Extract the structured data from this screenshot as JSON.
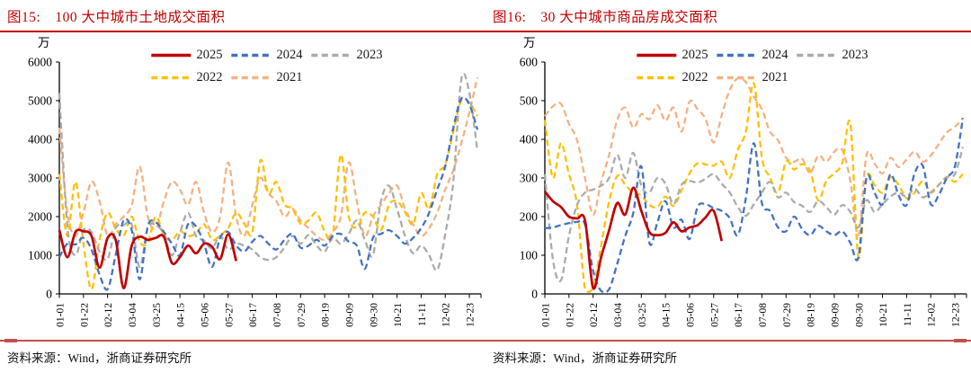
{
  "chart_data": [
    {
      "type": "line",
      "fig_label": "图15:",
      "title": "100 大中城市土地成交面积",
      "unit": "万",
      "ylim": [
        0,
        6000
      ],
      "yticks": [
        0,
        1000,
        2000,
        3000,
        4000,
        5000,
        6000
      ],
      "x_tick_labels": [
        "01-01",
        "01-22",
        "02-12",
        "03-04",
        "03-25",
        "04-15",
        "05-06",
        "05-27",
        "06-17",
        "07-08",
        "07-29",
        "08-19",
        "09-09",
        "09-30",
        "10-21",
        "11-11",
        "12-02",
        "12-23"
      ],
      "x_weeks_per_tick": 3,
      "x_total_weeks": 52,
      "grid": false,
      "legend_position": "top-center",
      "legend_rows": [
        [
          "2025",
          "2024",
          "2023"
        ],
        [
          "2022",
          "2021"
        ]
      ],
      "series": [
        {
          "name": "2025",
          "color": "#c00000",
          "style": "solid",
          "values": [
            1650,
            950,
            1600,
            1620,
            1500,
            680,
            1450,
            1400,
            150,
            1250,
            1480,
            1400,
            1450,
            1480,
            800,
            950,
            1250,
            1050,
            1300,
            1220,
            900,
            1540,
            850
          ]
        },
        {
          "name": "2024",
          "color": "#4472c4",
          "style": "dashed",
          "values": [
            950,
            1300,
            1280,
            1450,
            1150,
            500,
            120,
            1000,
            1900,
            1650,
            380,
            1750,
            1850,
            1600,
            1300,
            1000,
            1800,
            1750,
            1300,
            700,
            1450,
            1600,
            1250,
            1100,
            1350,
            1500,
            1300,
            1150,
            1400,
            1550,
            1200,
            1250,
            1400,
            1250,
            1500,
            1550,
            1350,
            1250,
            650,
            1450,
            1550,
            1650,
            1500,
            1300,
            1450,
            1700,
            2100,
            2700,
            3300,
            4300,
            5050,
            4900,
            4250
          ]
        },
        {
          "name": "2023",
          "color": "#ababab",
          "style": "dashed",
          "values": [
            5200,
            1750,
            1000,
            1650,
            1600,
            1100,
            900,
            1700,
            1780,
            1800,
            700,
            1720,
            1780,
            1550,
            1000,
            1580,
            2100,
            1500,
            1380,
            1180,
            1500,
            1150,
            1300,
            1250,
            1150,
            950,
            880,
            950,
            1200,
            1500,
            1300,
            1520,
            1250,
            1100,
            1450,
            1300,
            1550,
            1900,
            1400,
            1000,
            2400,
            2800,
            2200,
            1500,
            1050,
            1250,
            1000,
            620,
            1550,
            2900,
            5550,
            5200,
            3700
          ]
        },
        {
          "name": "2022",
          "color": "#ffc000",
          "style": "dashed",
          "values": [
            3100,
            1500,
            2900,
            1300,
            120,
            1400,
            2100,
            1700,
            1500,
            2000,
            1350,
            1320,
            2000,
            1520,
            1400,
            1620,
            1500,
            1560,
            1800,
            1400,
            1520,
            1700,
            2100,
            1820,
            1600,
            3450,
            2600,
            2900,
            2320,
            2200,
            1820,
            1900,
            2100,
            1620,
            1500,
            3600,
            2000,
            1720,
            2100,
            2000,
            1650,
            2300,
            2400,
            2120,
            1800,
            2600,
            2200,
            3100,
            3350,
            4200,
            5000,
            4950,
            4600
          ]
        },
        {
          "name": "2021",
          "color": "#f4b183",
          "style": "dashed",
          "values": [
            4300,
            2100,
            1500,
            2100,
            2900,
            2400,
            1500,
            1800,
            2000,
            2300,
            3300,
            2000,
            1700,
            2400,
            2900,
            2700,
            2300,
            2900,
            2100,
            1600,
            2000,
            3400,
            2000,
            1500,
            2300,
            3000,
            2600,
            2400,
            2000,
            2200,
            1900,
            1700,
            1500,
            1400,
            1600,
            2000,
            3400,
            2400,
            1500,
            2000,
            2300,
            2600,
            2800,
            2200,
            1800,
            1500,
            1700,
            2100,
            2700,
            3200,
            3900,
            4700,
            5600
          ]
        }
      ],
      "source": "资料来源：Wind，浙商证券研究所"
    },
    {
      "type": "line",
      "fig_label": "图16:",
      "title": "30 大中城市商品房成交面积",
      "unit": "万",
      "ylim": [
        0,
        600
      ],
      "yticks": [
        0,
        100,
        200,
        300,
        400,
        500,
        600
      ],
      "x_tick_labels": [
        "01-01",
        "01-22",
        "02-12",
        "03-04",
        "03-25",
        "04-15",
        "05-06",
        "05-27",
        "06-17",
        "07-08",
        "07-29",
        "08-19",
        "09-09",
        "09-30",
        "10-21",
        "11-11",
        "12-02",
        "12-23"
      ],
      "x_weeks_per_tick": 3,
      "x_total_weeks": 52,
      "grid": false,
      "legend_position": "top-center",
      "legend_rows": [
        [
          "2025",
          "2024",
          "2023"
        ],
        [
          "2022",
          "2021"
        ]
      ],
      "series": [
        {
          "name": "2025",
          "color": "#c00000",
          "style": "solid",
          "values": [
            265,
            240,
            225,
            200,
            195,
            190,
            15,
            95,
            165,
            235,
            205,
            275,
            215,
            160,
            152,
            158,
            185,
            162,
            172,
            178,
            198,
            215,
            137
          ]
        },
        {
          "name": "2024",
          "color": "#4472c4",
          "style": "dashed",
          "values": [
            170,
            172,
            178,
            183,
            186,
            180,
            60,
            8,
            12,
            78,
            150,
            210,
            330,
            132,
            185,
            240,
            172,
            192,
            142,
            225,
            232,
            222,
            215,
            196,
            152,
            248,
            390,
            235,
            215,
            172,
            162,
            200,
            168,
            152,
            176,
            162,
            152,
            162,
            132,
            95,
            300,
            262,
            232,
            310,
            255,
            230,
            312,
            332,
            232,
            256,
            300,
            330,
            455
          ]
        },
        {
          "name": "2023",
          "color": "#ababab",
          "style": "dashed",
          "values": [
            310,
            90,
            35,
            150,
            230,
            262,
            270,
            280,
            300,
            360,
            300,
            365,
            280,
            262,
            300,
            285,
            232,
            282,
            292,
            288,
            298,
            310,
            285,
            262,
            225,
            202,
            232,
            262,
            290,
            250,
            262,
            238,
            228,
            212,
            240,
            225,
            205,
            230,
            212,
            172,
            242,
            212,
            232,
            252,
            262,
            252,
            272,
            250,
            262,
            282,
            302,
            310,
            380
          ]
        },
        {
          "name": "2022",
          "color": "#ffc000",
          "style": "dashed",
          "values": [
            450,
            300,
            390,
            310,
            230,
            12,
            18,
            125,
            240,
            305,
            282,
            262,
            255,
            230,
            225,
            252,
            228,
            268,
            312,
            338,
            335,
            332,
            342,
            300,
            372,
            420,
            545,
            352,
            302,
            262,
            342,
            322,
            336,
            318,
            242,
            292,
            312,
            340,
            440,
            95,
            300,
            282,
            262,
            302,
            282,
            248,
            262,
            292,
            262,
            282,
            302,
            290,
            310
          ]
        },
        {
          "name": "2021",
          "color": "#f4b183",
          "style": "dashed",
          "values": [
            460,
            485,
            492,
            440,
            398,
            300,
            205,
            290,
            360,
            450,
            482,
            430,
            465,
            452,
            488,
            448,
            482,
            420,
            498,
            478,
            452,
            392,
            462,
            528,
            558,
            548,
            510,
            478,
            420,
            398,
            352,
            342,
            350,
            312,
            358,
            342,
            368,
            372,
            292,
            152,
            358,
            338,
            312,
            352,
            328,
            348,
            368,
            342,
            358,
            388,
            418,
            432,
            455
          ]
        }
      ],
      "source": "资料来源：Wind，浙商证券研究所"
    }
  ]
}
